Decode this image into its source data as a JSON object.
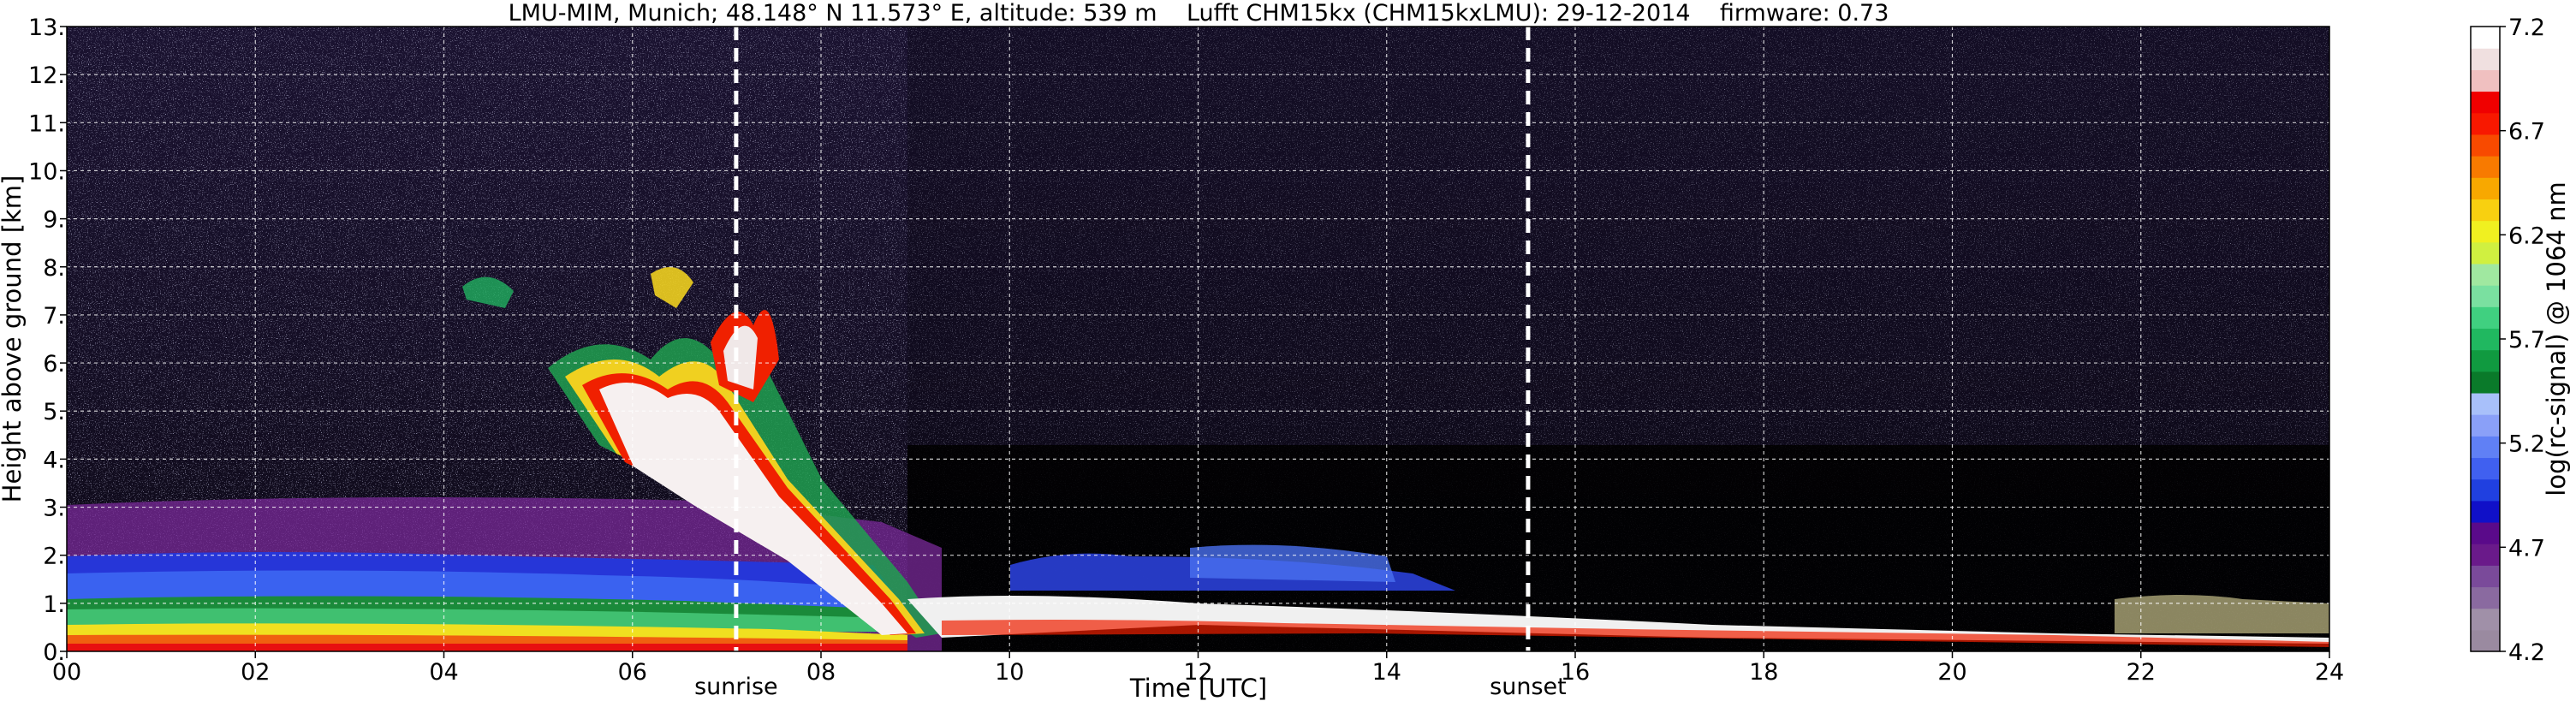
{
  "chart_data": {
    "type": "heatmap",
    "title": "LMU-MIM, Munich; 48.148° N 11.573° E, altitude: 539 m    Lufft CHM15kx (CHM15kxLMU): 29-12-2014    firmware: 0.73",
    "xlabel": "Time [UTC]",
    "ylabel": "Height above ground [km]",
    "xlim": [
      0,
      24
    ],
    "ylim": [
      0,
      13
    ],
    "x_ticks": [
      "00",
      "02",
      "04",
      "06",
      "08",
      "10",
      "12",
      "14",
      "16",
      "18",
      "20",
      "22",
      "24"
    ],
    "y_ticks": [
      "0.",
      "1.",
      "2.",
      "3.",
      "4.",
      "5.",
      "6.",
      "7.",
      "8.",
      "9.",
      "10.",
      "11.",
      "12.",
      "13."
    ],
    "grid": true,
    "colorbar": {
      "label": "log(rc-signal) @ 1064 nm",
      "range": [
        4.2,
        7.2
      ],
      "ticks": [
        "4.2",
        "4.7",
        "5.2",
        "5.7",
        "6.2",
        "6.7",
        "7.2"
      ],
      "colors": [
        "#9a8aa0",
        "#a090a8",
        "#8a6aa0",
        "#7a4a9a",
        "#6a1a8a",
        "#5a0a8a",
        "#1010c8",
        "#2040e0",
        "#4060f0",
        "#6080f5",
        "#8aa0f8",
        "#a8c0fa",
        "#0a7a2a",
        "#109a40",
        "#20b860",
        "#40d080",
        "#7ae0a0",
        "#a0e8a0",
        "#d0f040",
        "#f0f020",
        "#f8d010",
        "#f8a800",
        "#f87a00",
        "#f84a00",
        "#f81800",
        "#f00000",
        "#f0c0c0",
        "#f0e0e0",
        "#ffffff"
      ]
    },
    "annotations": [
      {
        "text": "sunrise",
        "x": 7.1,
        "marker": "dashed-vertical-line"
      },
      {
        "text": "sunset",
        "x": 15.5,
        "marker": "dashed-vertical-line"
      }
    ]
  }
}
